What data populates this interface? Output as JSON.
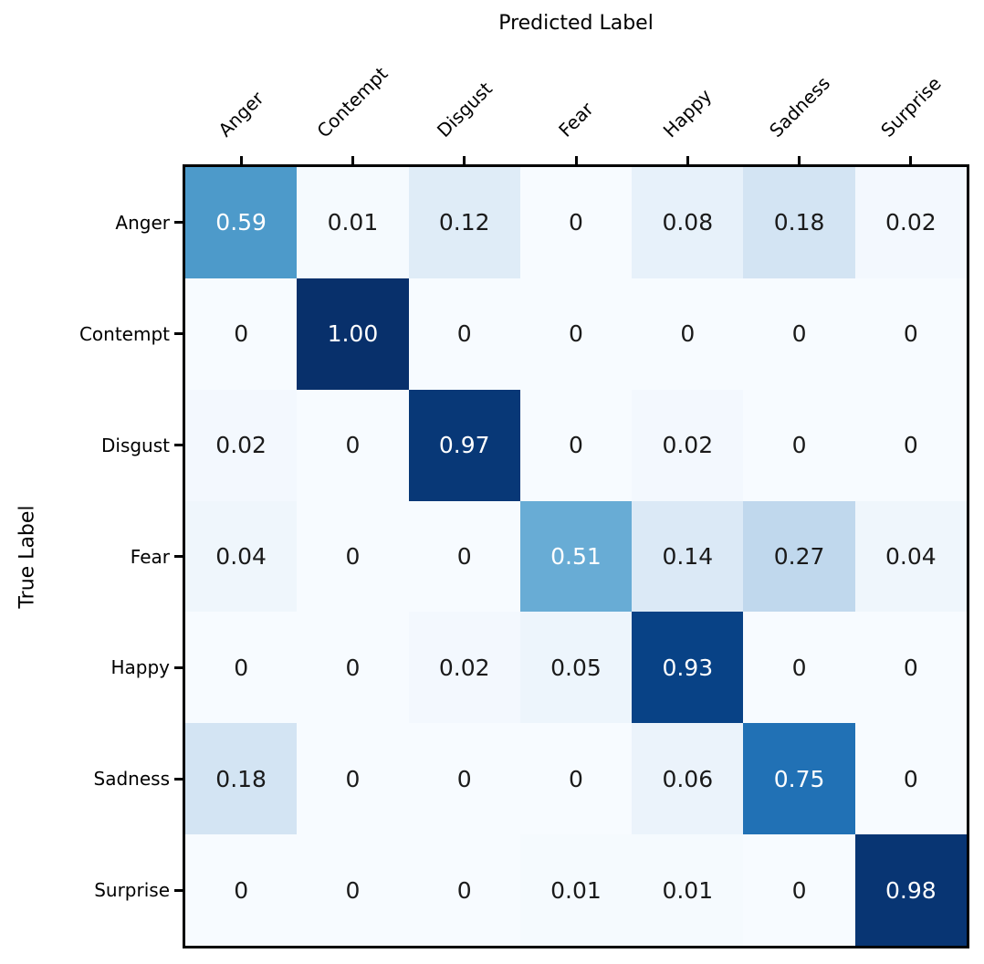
{
  "chart_data": {
    "type": "heatmap",
    "title": "",
    "xlabel": "Predicted Label",
    "ylabel": "True Label",
    "x_categories": [
      "Anger",
      "Contempt",
      "Disgust",
      "Fear",
      "Happy",
      "Sadness",
      "Surprise"
    ],
    "y_categories": [
      "Anger",
      "Contempt",
      "Disgust",
      "Fear",
      "Happy",
      "Sadness",
      "Surprise"
    ],
    "values": [
      [
        0.59,
        0.01,
        0.12,
        0,
        0.08,
        0.18,
        0.02
      ],
      [
        0,
        1.0,
        0,
        0,
        0,
        0,
        0
      ],
      [
        0.02,
        0,
        0.97,
        0,
        0.02,
        0,
        0
      ],
      [
        0.04,
        0,
        0,
        0.51,
        0.14,
        0.27,
        0.04
      ],
      [
        0,
        0,
        0.02,
        0.05,
        0.93,
        0,
        0
      ],
      [
        0.18,
        0,
        0,
        0,
        0.06,
        0.75,
        0
      ],
      [
        0,
        0,
        0,
        0.01,
        0.01,
        0,
        0.98
      ]
    ],
    "value_range": [
      0,
      1
    ],
    "colormap": {
      "name": "Blues",
      "anchors": [
        "#f7fbff",
        "#deebf7",
        "#c6dbef",
        "#9ecae1",
        "#6baed6",
        "#4292c6",
        "#2171b5",
        "#08519c",
        "#08306b"
      ]
    },
    "text_color_dark": "#1a1a1a",
    "text_color_light": "#ffffff",
    "text_threshold": 0.5,
    "grid": false,
    "legend": "none",
    "x_tick_rotation_deg": 45
  }
}
